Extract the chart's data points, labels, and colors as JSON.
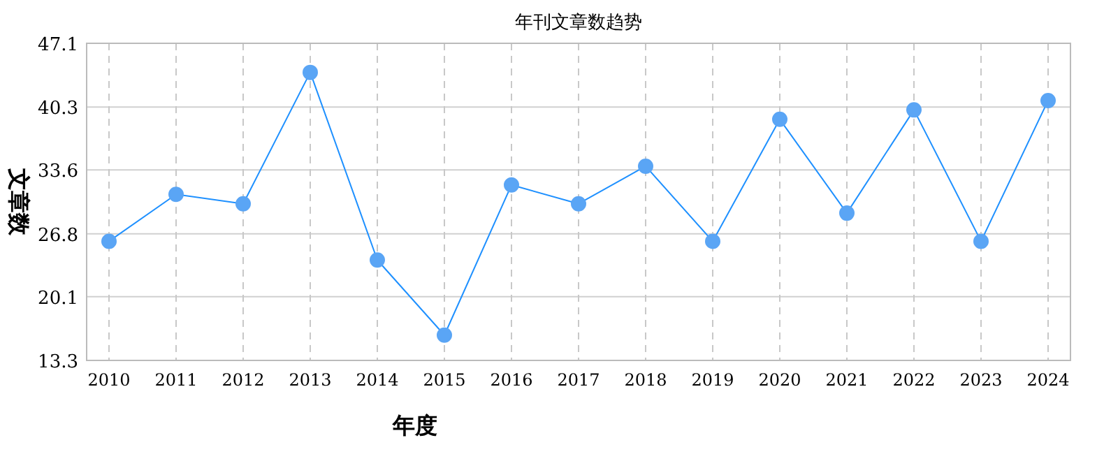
{
  "chart_data": {
    "type": "line",
    "title": "年刊文章数趋势",
    "xlabel": "年度",
    "ylabel": "文章数",
    "categories": [
      "2010",
      "2011",
      "2012",
      "2013",
      "2014",
      "2015",
      "2016",
      "2017",
      "2018",
      "2019",
      "2020",
      "2021",
      "2022",
      "2023",
      "2024"
    ],
    "series": [
      {
        "color": "#1e90ff",
        "values": [
          26,
          31,
          30,
          44,
          24,
          16,
          32,
          30,
          34,
          26,
          39,
          29,
          40,
          26,
          41
        ]
      }
    ],
    "ylim": [
      13.3,
      47.1
    ],
    "yticks": [
      13.3,
      20.1,
      26.8,
      33.6,
      40.3,
      47.1
    ],
    "grid": true,
    "marker": "circle"
  }
}
